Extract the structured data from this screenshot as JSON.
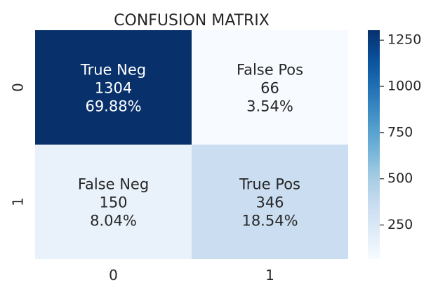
{
  "chart_data": {
    "type": "heatmap",
    "title": "CONFUSION MATRIX",
    "xlabel": "",
    "ylabel": "",
    "x_categories": [
      "0",
      "1"
    ],
    "y_categories": [
      "0",
      "1"
    ],
    "cells": [
      [
        {
          "label": "True Neg",
          "value": 1304,
          "percent": "69.88%"
        },
        {
          "label": "False Pos",
          "value": 66,
          "percent": "3.54%"
        }
      ],
      [
        {
          "label": "False Neg",
          "value": 150,
          "percent": "8.04%"
        },
        {
          "label": "True Pos",
          "value": 346,
          "percent": "18.54%"
        }
      ]
    ],
    "colorbar": {
      "min": 66,
      "max": 1304,
      "ticks": [
        250,
        500,
        750,
        1000,
        1250
      ],
      "colormap": "Blues"
    }
  }
}
